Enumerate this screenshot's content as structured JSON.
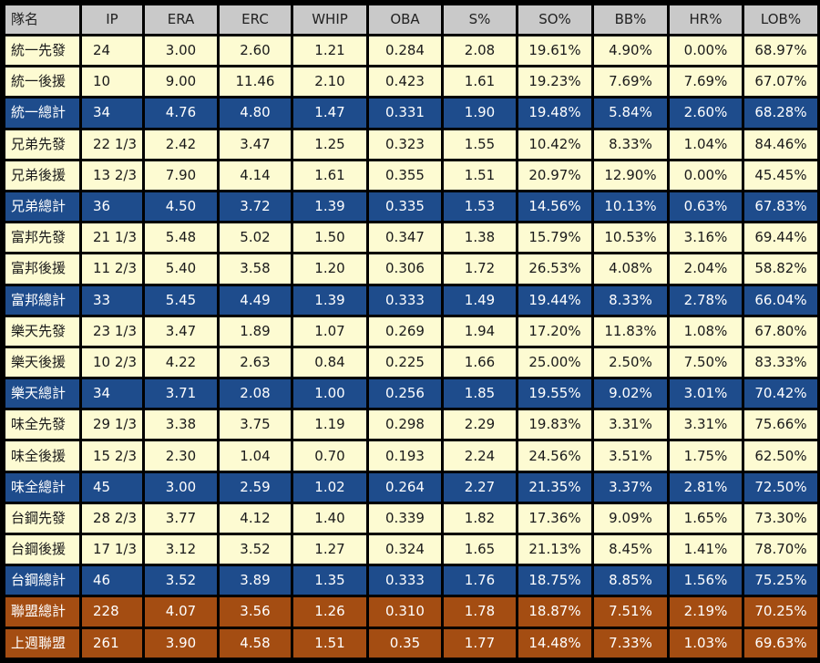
{
  "table": {
    "headers": [
      "隊名",
      "IP",
      "ERA",
      "ERC",
      "WHIP",
      "OBA",
      "S%",
      "SO%",
      "BB%",
      "HR%",
      "LOB%"
    ],
    "rows": [
      {
        "kind": "normal",
        "cells": [
          "統一先發",
          "24",
          "3.00",
          "2.60",
          "1.21",
          "0.284",
          "2.08",
          "19.61%",
          "4.90%",
          "0.00%",
          "68.97%"
        ]
      },
      {
        "kind": "normal",
        "cells": [
          "統一後援",
          "10",
          "9.00",
          "11.46",
          "2.10",
          "0.423",
          "1.61",
          "19.23%",
          "7.69%",
          "7.69%",
          "67.07%"
        ]
      },
      {
        "kind": "total",
        "cells": [
          "統一總計",
          "34",
          "4.76",
          "4.80",
          "1.47",
          "0.331",
          "1.90",
          "19.48%",
          "5.84%",
          "2.60%",
          "68.28%"
        ]
      },
      {
        "kind": "normal",
        "cells": [
          "兄弟先發",
          "22 1/3",
          "2.42",
          "3.47",
          "1.25",
          "0.323",
          "1.55",
          "10.42%",
          "8.33%",
          "1.04%",
          "84.46%"
        ]
      },
      {
        "kind": "normal",
        "cells": [
          "兄弟後援",
          "13 2/3",
          "7.90",
          "4.14",
          "1.61",
          "0.355",
          "1.51",
          "20.97%",
          "12.90%",
          "0.00%",
          "45.45%"
        ]
      },
      {
        "kind": "total",
        "cells": [
          "兄弟總計",
          "36",
          "4.50",
          "3.72",
          "1.39",
          "0.335",
          "1.53",
          "14.56%",
          "10.13%",
          "0.63%",
          "67.83%"
        ]
      },
      {
        "kind": "normal",
        "cells": [
          "富邦先發",
          "21 1/3",
          "5.48",
          "5.02",
          "1.50",
          "0.347",
          "1.38",
          "15.79%",
          "10.53%",
          "3.16%",
          "69.44%"
        ]
      },
      {
        "kind": "normal",
        "cells": [
          "富邦後援",
          "11 2/3",
          "5.40",
          "3.58",
          "1.20",
          "0.306",
          "1.72",
          "26.53%",
          "4.08%",
          "2.04%",
          "58.82%"
        ]
      },
      {
        "kind": "total",
        "cells": [
          "富邦總計",
          "33",
          "5.45",
          "4.49",
          "1.39",
          "0.333",
          "1.49",
          "19.44%",
          "8.33%",
          "2.78%",
          "66.04%"
        ]
      },
      {
        "kind": "normal",
        "cells": [
          "樂天先發",
          "23 1/3",
          "3.47",
          "1.89",
          "1.07",
          "0.269",
          "1.94",
          "17.20%",
          "11.83%",
          "1.08%",
          "67.80%"
        ]
      },
      {
        "kind": "normal",
        "cells": [
          "樂天後援",
          "10 2/3",
          "4.22",
          "2.63",
          "0.84",
          "0.225",
          "1.66",
          "25.00%",
          "2.50%",
          "7.50%",
          "83.33%"
        ]
      },
      {
        "kind": "total",
        "cells": [
          "樂天總計",
          "34",
          "3.71",
          "2.08",
          "1.00",
          "0.256",
          "1.85",
          "19.55%",
          "9.02%",
          "3.01%",
          "70.42%"
        ]
      },
      {
        "kind": "normal",
        "cells": [
          "味全先發",
          "29 1/3",
          "3.38",
          "3.75",
          "1.19",
          "0.298",
          "2.29",
          "19.83%",
          "3.31%",
          "3.31%",
          "75.66%"
        ]
      },
      {
        "kind": "normal",
        "cells": [
          "味全後援",
          "15 2/3",
          "2.30",
          "1.04",
          "0.70",
          "0.193",
          "2.24",
          "24.56%",
          "3.51%",
          "1.75%",
          "62.50%"
        ]
      },
      {
        "kind": "total",
        "cells": [
          "味全總計",
          "45",
          "3.00",
          "2.59",
          "1.02",
          "0.264",
          "2.27",
          "21.35%",
          "3.37%",
          "2.81%",
          "72.50%"
        ]
      },
      {
        "kind": "normal",
        "cells": [
          "台鋼先發",
          "28 2/3",
          "3.77",
          "4.12",
          "1.40",
          "0.339",
          "1.82",
          "17.36%",
          "9.09%",
          "1.65%",
          "73.30%"
        ]
      },
      {
        "kind": "normal",
        "cells": [
          "台鋼後援",
          "17 1/3",
          "3.12",
          "3.52",
          "1.27",
          "0.324",
          "1.65",
          "21.13%",
          "8.45%",
          "1.41%",
          "78.70%"
        ]
      },
      {
        "kind": "total",
        "cells": [
          "台鋼總計",
          "46",
          "3.52",
          "3.89",
          "1.35",
          "0.333",
          "1.76",
          "18.75%",
          "8.85%",
          "1.56%",
          "75.25%"
        ]
      },
      {
        "kind": "league",
        "cells": [
          "聯盟總計",
          "228",
          "4.07",
          "3.56",
          "1.26",
          "0.310",
          "1.78",
          "18.87%",
          "7.51%",
          "2.19%",
          "70.25%"
        ]
      },
      {
        "kind": "league",
        "cells": [
          "上週聯盟",
          "261",
          "3.90",
          "4.58",
          "1.51",
          "0.35",
          "1.77",
          "14.48%",
          "7.33%",
          "1.03%",
          "69.63%"
        ]
      }
    ]
  }
}
